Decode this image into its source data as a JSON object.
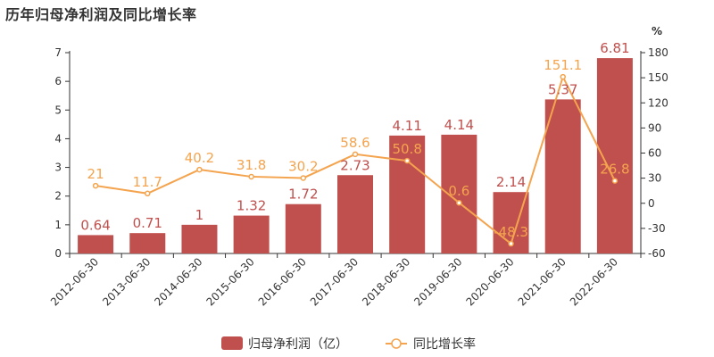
{
  "chart_data": {
    "type": "bar",
    "title": "历年归母净利润及同比增长率",
    "categories": [
      "2012-06-30",
      "2013-06-30",
      "2014-06-30",
      "2015-06-30",
      "2016-06-30",
      "2017-06-30",
      "2018-06-30",
      "2019-06-30",
      "2020-06-30",
      "2021-06-30",
      "2022-06-30"
    ],
    "series": [
      {
        "name": "归母净利润（亿）",
        "type": "bar",
        "axis": "left",
        "color": "#c0504d",
        "values": [
          0.64,
          0.71,
          1,
          1.32,
          1.72,
          2.73,
          4.11,
          4.14,
          2.14,
          5.37,
          6.81
        ],
        "labels": [
          "0.64",
          "0.71",
          "1",
          "1.32",
          "1.72",
          "2.73",
          "4.11",
          "4.14",
          "2.14",
          "5.37",
          "6.81"
        ]
      },
      {
        "name": "同比增长率",
        "type": "line",
        "axis": "right",
        "color": "#f4a44e",
        "values": [
          21,
          11.7,
          40.2,
          31.8,
          30.2,
          58.6,
          50.8,
          0.6,
          -48.3,
          151.1,
          26.8
        ],
        "labels": [
          "21",
          "11.7",
          "40.2",
          "31.8",
          "30.2",
          "58.6",
          "50.8",
          "0.6",
          "-48.3",
          "151.1",
          "26.8"
        ]
      }
    ],
    "y_left": {
      "min": 0,
      "max": 7,
      "ticks": [
        "0",
        "1",
        "2",
        "3",
        "4",
        "5",
        "6",
        "7"
      ]
    },
    "y_right": {
      "min": -60,
      "max": 180,
      "unit": "%",
      "ticks": [
        "-60",
        "-30",
        "0",
        "30",
        "60",
        "90",
        "120",
        "150",
        "180"
      ]
    },
    "grid": false,
    "legend_position": "bottom"
  }
}
